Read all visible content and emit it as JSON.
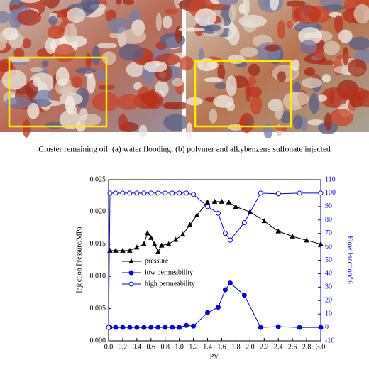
{
  "figure": {
    "caption": "Cluster remaining oil: (a) water flooding; (b) polymer and alkybenzene sulfonate injected"
  },
  "chart_data": {
    "type": "line",
    "xlabel": "PV",
    "ylabel": "Injection Pressure/MPa",
    "y2label": "Flow Fraction/%",
    "xlim": [
      0,
      3.0
    ],
    "xticks": [
      {
        "value": 0,
        "label": "0.0"
      },
      0.2,
      0.4,
      0.6,
      0.8,
      {
        "value": 1,
        "label": "1.0"
      },
      1.2,
      1.4,
      1.6,
      1.8,
      {
        "value": 2,
        "label": "2.0"
      },
      2.2,
      2.4,
      2.6,
      2.8,
      {
        "value": 3,
        "label": "3.0"
      }
    ],
    "ylim": [
      0,
      0.025
    ],
    "yticks": [
      {
        "value": 0,
        "label": "0.000"
      },
      {
        "value": 0.005,
        "label": "0.005"
      },
      {
        "value": 0.01,
        "label": "0.010"
      },
      {
        "value": 0.015,
        "label": "0.015"
      },
      {
        "value": 0.02,
        "label": "0.020"
      },
      {
        "value": 0.025,
        "label": "0.025"
      }
    ],
    "y2lim": [
      -10,
      110
    ],
    "y2ticks": [
      -10,
      0,
      10,
      20,
      30,
      40,
      50,
      60,
      70,
      80,
      90,
      100,
      110
    ],
    "legend": "left",
    "series": [
      {
        "name": "pressure",
        "color": "#000000",
        "marker": "triangle",
        "axis": "y",
        "x": [
          0.02,
          0.1,
          0.2,
          0.3,
          0.4,
          0.5,
          0.55,
          0.6,
          0.65,
          0.7,
          0.75,
          0.85,
          0.95,
          1.05,
          1.15,
          1.25,
          1.4,
          1.5,
          1.6,
          1.7,
          1.8,
          2.0,
          2.2,
          2.4,
          2.6,
          2.8,
          3.0
        ],
        "values": [
          0.014,
          0.014,
          0.014,
          0.014,
          0.0145,
          0.015,
          0.0167,
          0.016,
          0.015,
          0.0138,
          0.0148,
          0.015,
          0.0157,
          0.0165,
          0.018,
          0.0195,
          0.0215,
          0.0216,
          0.0216,
          0.0215,
          0.0208,
          0.02,
          0.0186,
          0.017,
          0.0162,
          0.0156,
          0.015
        ]
      },
      {
        "name": "low permeability",
        "color": "#0000ff",
        "marker": "filled-circle",
        "axis": "y2",
        "x": [
          0.02,
          0.1,
          0.2,
          0.3,
          0.4,
          0.5,
          0.6,
          0.7,
          0.8,
          0.9,
          1.0,
          1.1,
          1.2,
          1.4,
          1.55,
          1.65,
          1.72,
          1.92,
          2.15,
          2.4,
          2.7,
          3.0
        ],
        "values": [
          0,
          0,
          0,
          0,
          0,
          0,
          0,
          0,
          0,
          0,
          0,
          1.5,
          1,
          11,
          15,
          28,
          33,
          24,
          0,
          0.5,
          0,
          0
        ]
      },
      {
        "name": "high permeability",
        "color": "#0000ff",
        "marker": "open-circle",
        "axis": "y2",
        "x": [
          0,
          0.02,
          0.1,
          0.2,
          0.3,
          0.4,
          0.5,
          0.6,
          0.7,
          0.8,
          0.9,
          1.0,
          1.1,
          1.2,
          1.4,
          1.55,
          1.65,
          1.72,
          1.92,
          2.15,
          2.4,
          2.7,
          3.0
        ],
        "values": [
          0,
          100,
          100,
          100,
          100,
          100,
          100,
          100,
          100,
          100,
          100,
          100,
          100,
          99,
          90,
          85,
          70,
          65,
          78,
          100,
          99.5,
          100,
          100
        ]
      }
    ]
  }
}
